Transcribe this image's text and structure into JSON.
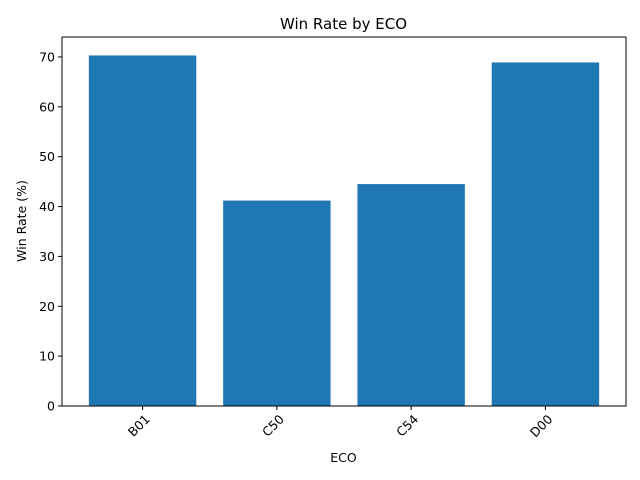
{
  "chart_data": {
    "type": "bar",
    "title": "Win Rate by ECO",
    "xlabel": "ECO",
    "ylabel": "Win Rate (%)",
    "categories": [
      "B01",
      "C50",
      "C54",
      "D00"
    ],
    "values": [
      70.3,
      41.2,
      44.5,
      68.9
    ],
    "ylim": [
      0,
      74
    ],
    "yticks": [
      0,
      10,
      20,
      30,
      40,
      50,
      60,
      70
    ],
    "x_tick_rotation_deg": 45,
    "grid": false,
    "legend": "none",
    "bar_color": "#1f77b4"
  }
}
